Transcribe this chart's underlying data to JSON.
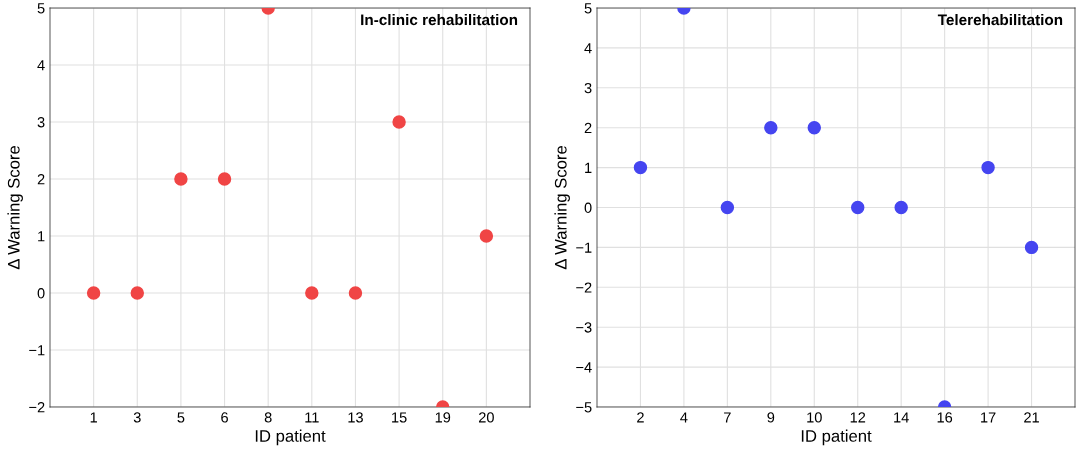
{
  "chart_data": [
    {
      "type": "scatter",
      "title": "In-clinic rehabilitation",
      "xlabel": "ID patient",
      "ylabel": "Δ Warning Score",
      "categories": [
        "1",
        "3",
        "5",
        "6",
        "8",
        "11",
        "13",
        "15",
        "19",
        "20"
      ],
      "series": [
        {
          "color": "#f04545",
          "values": [
            0,
            0,
            2,
            2,
            5,
            0,
            0,
            3,
            -2,
            1
          ]
        }
      ],
      "ylim": [
        -2,
        5
      ],
      "yticks": [
        -2,
        -1,
        0,
        1,
        2,
        3,
        4,
        5
      ],
      "grid": true,
      "marker": "circle"
    },
    {
      "type": "scatter",
      "title": "Telerehabilitation",
      "xlabel": "ID patient",
      "ylabel": "Δ Warning Score",
      "categories": [
        "2",
        "4",
        "7",
        "9",
        "10",
        "12",
        "14",
        "16",
        "17",
        "21"
      ],
      "series": [
        {
          "color": "#4545f0",
          "values": [
            1,
            5,
            0,
            2,
            2,
            0,
            0,
            -5,
            1,
            -1
          ]
        }
      ],
      "ylim": [
        -5,
        5
      ],
      "yticks": [
        -5,
        -4,
        -3,
        -2,
        -1,
        0,
        1,
        2,
        3,
        4,
        5
      ],
      "grid": true,
      "marker": "circle"
    }
  ]
}
